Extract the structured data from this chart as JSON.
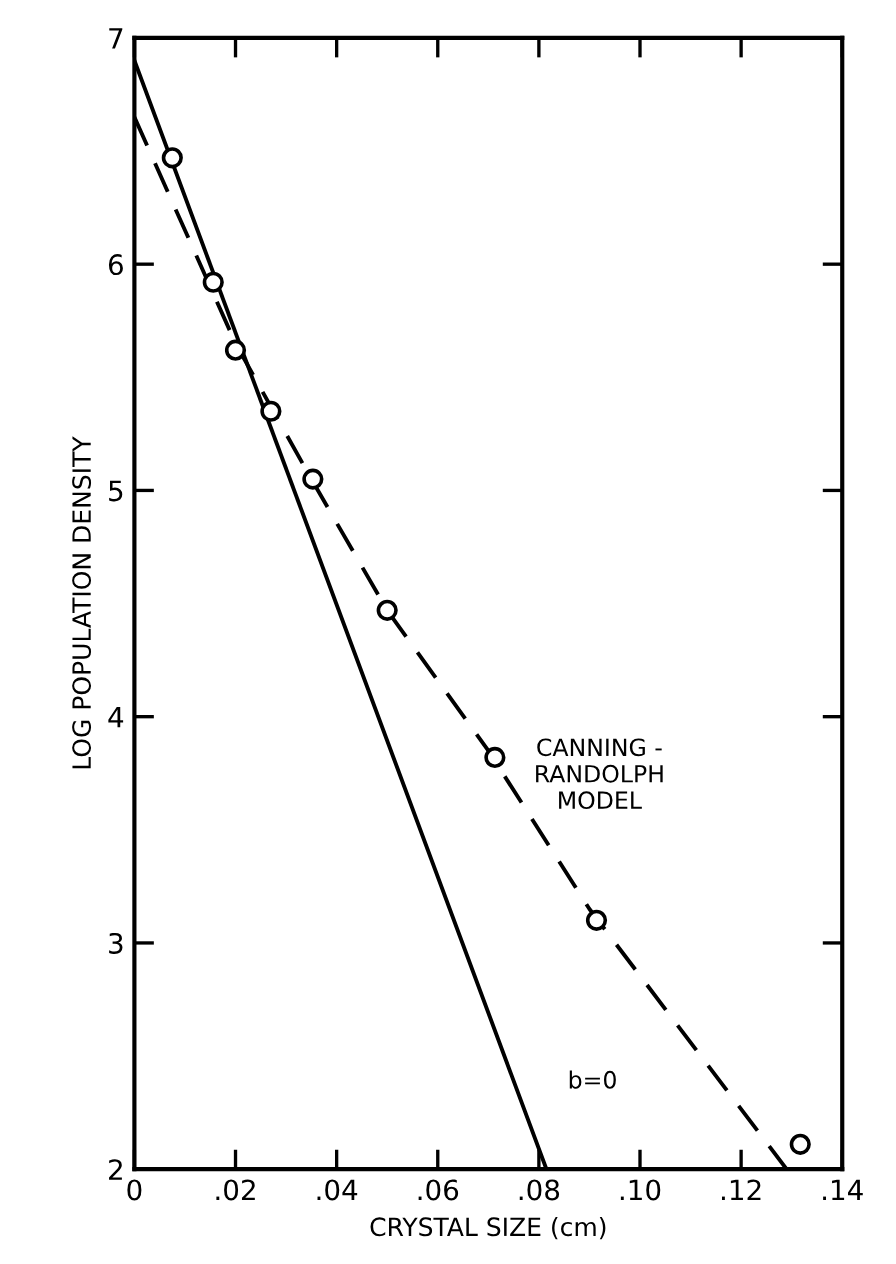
{
  "chart_data": {
    "type": "line",
    "xlabel": "CRYSTAL SIZE (cm)",
    "ylabel": "LOG POPULATION DENSITY",
    "xlim": [
      0,
      0.14
    ],
    "ylim": [
      2,
      7
    ],
    "xticks": [
      0,
      {
        "value": 0.02,
        "label": ".02"
      },
      {
        "value": 0.04,
        "label": ".04"
      },
      {
        "value": 0.06,
        "label": ".06"
      },
      {
        "value": 0.08,
        "label": ".08"
      },
      {
        "value": 0.1,
        "label": ".10"
      },
      {
        "value": 0.12,
        "label": ".12"
      },
      {
        "value": 0.14,
        "label": ".14"
      }
    ],
    "yticks": [
      2,
      3,
      4,
      5,
      6,
      7
    ],
    "grid": false,
    "legend": false,
    "series": [
      {
        "type": "scatter",
        "marker": "circle",
        "color": "#000000",
        "x": [
          0.0075,
          0.0156,
          0.02,
          0.027,
          0.0353,
          0.05,
          0.0713,
          0.0914,
          0.1317
        ],
        "values": [
          6.47,
          5.92,
          5.62,
          5.35,
          5.05,
          4.47,
          3.82,
          3.1,
          2.11
        ]
      },
      {
        "line_style": "dashed",
        "color": "#000000",
        "x": [
          0,
          0.02,
          0.035,
          0.05,
          0.07,
          0.09,
          0.129
        ],
        "values": [
          6.65,
          5.65,
          5.05,
          4.47,
          3.85,
          3.15,
          2.0
        ]
      },
      {
        "line_style": "solid",
        "color": "#000000",
        "x": [
          0,
          0.0815
        ],
        "values": [
          6.9,
          2.0
        ]
      }
    ],
    "annotations": [
      {
        "text": "CANNING -\nRANDOLPH\nMODEL",
        "x": 0.0713,
        "y": 3.82
      },
      {
        "text": "b=0",
        "x": 0.078,
        "y": 2.3
      }
    ]
  }
}
